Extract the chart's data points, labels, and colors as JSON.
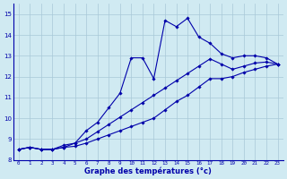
{
  "title": "Graphe des températures (°c)",
  "background_color": "#d0eaf2",
  "line_color": "#0000aa",
  "hours": [
    0,
    1,
    2,
    3,
    4,
    5,
    6,
    7,
    8,
    9,
    10,
    11,
    12,
    13,
    14,
    15,
    16,
    17,
    18,
    19,
    20,
    21,
    22,
    23
  ],
  "line_main": [
    8.5,
    8.6,
    8.5,
    8.5,
    8.6,
    8.8,
    9.4,
    9.8,
    10.5,
    11.2,
    12.9,
    12.9,
    11.9,
    14.7,
    14.4,
    14.8,
    13.9,
    13.6,
    13.1,
    12.9,
    13.0,
    13.0,
    12.9,
    12.6
  ],
  "line_upper": [
    8.5,
    8.6,
    8.5,
    8.5,
    8.7,
    8.8,
    9.0,
    9.35,
    9.7,
    10.05,
    10.4,
    10.75,
    11.1,
    11.45,
    11.8,
    12.15,
    12.5,
    12.85,
    12.6,
    12.35,
    12.5,
    12.65,
    12.7,
    12.6
  ],
  "line_lower": [
    8.5,
    8.6,
    8.5,
    8.5,
    8.6,
    8.65,
    8.8,
    9.0,
    9.2,
    9.4,
    9.6,
    9.8,
    10.0,
    10.4,
    10.8,
    11.1,
    11.5,
    11.9,
    11.9,
    12.0,
    12.2,
    12.35,
    12.5,
    12.6
  ],
  "ylim": [
    8,
    15.5
  ],
  "yticks": [
    8,
    9,
    10,
    11,
    12,
    13,
    14,
    15
  ],
  "xticks": [
    0,
    1,
    2,
    3,
    4,
    5,
    6,
    7,
    8,
    9,
    10,
    11,
    12,
    13,
    14,
    15,
    16,
    17,
    18,
    19,
    20,
    21,
    22,
    23
  ],
  "grid_color": "#a8c8d8",
  "marker": "D",
  "marker_size": 1.8,
  "linewidth": 0.8
}
